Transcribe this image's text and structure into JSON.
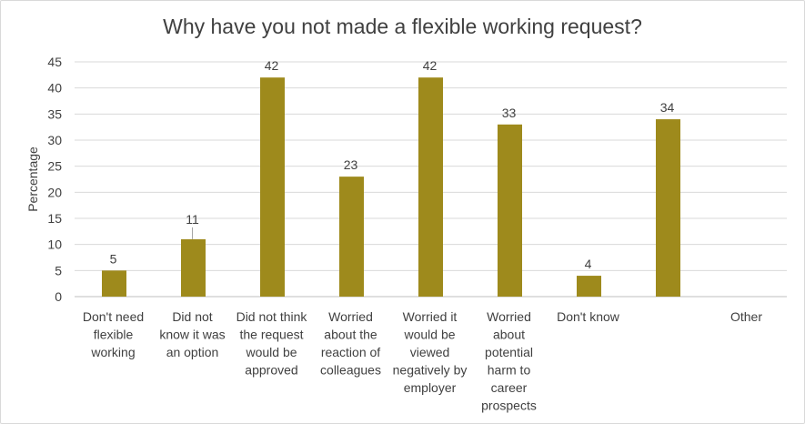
{
  "chart_data": {
    "type": "bar",
    "title": "Why have you not made a flexible working request?",
    "ylabel": "Percentage",
    "xlabel": "",
    "ylim": [
      0,
      45
    ],
    "yticks": [
      0,
      5,
      10,
      15,
      20,
      25,
      30,
      35,
      40,
      45
    ],
    "grid": true,
    "legend": "none",
    "bar_color": "#9e8a1c",
    "categories": [
      [
        "Don't need",
        "flexible",
        "working"
      ],
      [
        "Did not",
        "know it was",
        "an option"
      ],
      [
        "Did not think",
        "the request",
        "would be",
        "approved"
      ],
      [
        "Worried",
        "about the",
        "reaction of",
        "colleagues"
      ],
      [
        "Worried it",
        "would be",
        "viewed",
        "negatively by",
        "employer"
      ],
      [
        "Worried",
        "about",
        "potential",
        "harm to",
        "career",
        "prospects"
      ],
      [
        "Don't know"
      ],
      [],
      [
        "Other"
      ]
    ],
    "values": [
      5,
      11,
      42,
      23,
      42,
      33,
      4,
      34,
      null
    ],
    "data_labels": [
      "5",
      "11",
      "42",
      "23",
      "42",
      "33",
      "4",
      "34",
      ""
    ]
  }
}
